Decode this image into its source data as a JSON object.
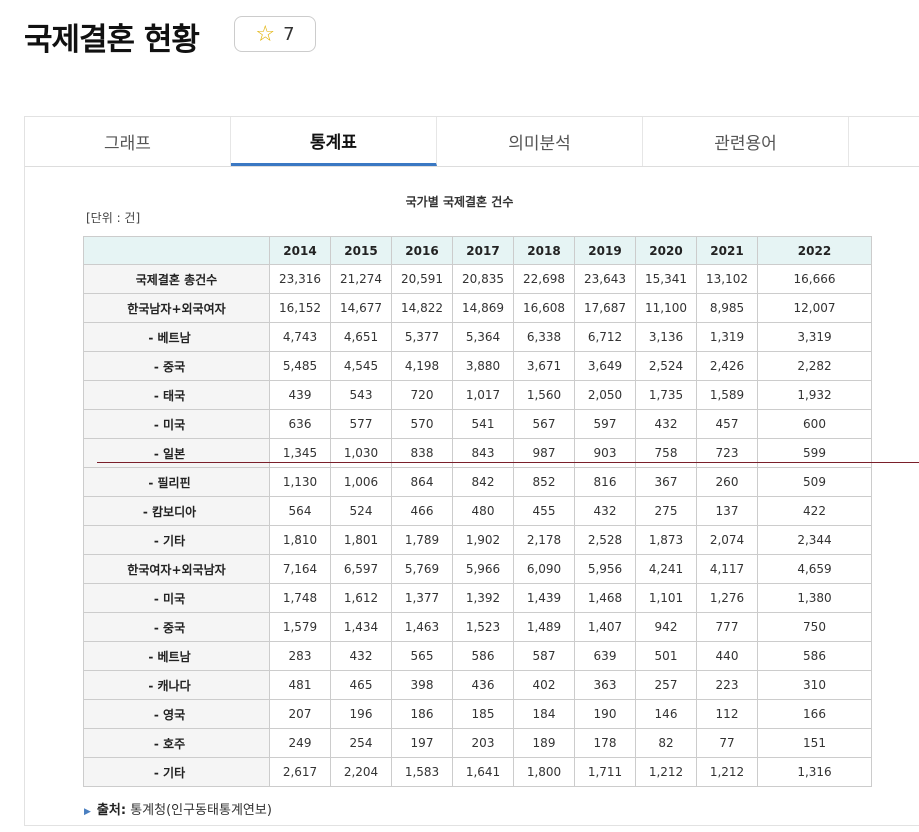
{
  "page": {
    "title": "국제결혼 현황",
    "star_count": "7",
    "star_icon": "star-outline-icon"
  },
  "tabs": [
    {
      "label": "그래프"
    },
    {
      "label": "통계표",
      "active": true
    },
    {
      "label": "의미분석"
    },
    {
      "label": "관련용어"
    }
  ],
  "table": {
    "title": "국가별 국제결혼 건수",
    "unit": "[단위 : 건]",
    "headers": [
      "",
      "2014",
      "2015",
      "2016",
      "2017",
      "2018",
      "2019",
      "2020",
      "2021",
      "2022"
    ],
    "rows": [
      {
        "label": "국제결혼 총건수",
        "values": [
          "23,316",
          "21,274",
          "20,591",
          "20,835",
          "22,698",
          "23,643",
          "15,341",
          "13,102",
          "16,666"
        ]
      },
      {
        "label": "한국남자+외국여자",
        "values": [
          "16,152",
          "14,677",
          "14,822",
          "14,869",
          "16,608",
          "17,687",
          "11,100",
          "8,985",
          "12,007"
        ]
      },
      {
        "label": "- 베트남",
        "values": [
          "4,743",
          "4,651",
          "5,377",
          "5,364",
          "6,338",
          "6,712",
          "3,136",
          "1,319",
          "3,319"
        ]
      },
      {
        "label": "- 중국",
        "values": [
          "5,485",
          "4,545",
          "4,198",
          "3,880",
          "3,671",
          "3,649",
          "2,524",
          "2,426",
          "2,282"
        ]
      },
      {
        "label": "- 태국",
        "values": [
          "439",
          "543",
          "720",
          "1,017",
          "1,560",
          "2,050",
          "1,735",
          "1,589",
          "1,932"
        ]
      },
      {
        "label": "- 미국",
        "values": [
          "636",
          "577",
          "570",
          "541",
          "567",
          "597",
          "432",
          "457",
          "600"
        ]
      },
      {
        "label": "- 일본",
        "values": [
          "1,345",
          "1,030",
          "838",
          "843",
          "987",
          "903",
          "758",
          "723",
          "599"
        ]
      },
      {
        "label": "- 필리핀",
        "values": [
          "1,130",
          "1,006",
          "864",
          "842",
          "852",
          "816",
          "367",
          "260",
          "509"
        ]
      },
      {
        "label": "- 캄보디아",
        "values": [
          "564",
          "524",
          "466",
          "480",
          "455",
          "432",
          "275",
          "137",
          "422"
        ]
      },
      {
        "label": "- 기타",
        "values": [
          "1,810",
          "1,801",
          "1,789",
          "1,902",
          "2,178",
          "2,528",
          "1,873",
          "2,074",
          "2,344"
        ]
      },
      {
        "label": "한국여자+외국남자",
        "values": [
          "7,164",
          "6,597",
          "5,769",
          "5,966",
          "6,090",
          "5,956",
          "4,241",
          "4,117",
          "4,659"
        ]
      },
      {
        "label": "- 미국",
        "values": [
          "1,748",
          "1,612",
          "1,377",
          "1,392",
          "1,439",
          "1,468",
          "1,101",
          "1,276",
          "1,380"
        ]
      },
      {
        "label": "- 중국",
        "values": [
          "1,579",
          "1,434",
          "1,463",
          "1,523",
          "1,489",
          "1,407",
          "942",
          "777",
          "750"
        ]
      },
      {
        "label": "- 베트남",
        "values": [
          "283",
          "432",
          "565",
          "586",
          "587",
          "639",
          "501",
          "440",
          "586"
        ]
      },
      {
        "label": "- 캐나다",
        "values": [
          "481",
          "465",
          "398",
          "436",
          "402",
          "363",
          "257",
          "223",
          "310"
        ]
      },
      {
        "label": "- 영국",
        "values": [
          "207",
          "196",
          "186",
          "185",
          "184",
          "190",
          "146",
          "112",
          "166"
        ]
      },
      {
        "label": "- 호주",
        "values": [
          "249",
          "254",
          "197",
          "203",
          "189",
          "178",
          "82",
          "77",
          "151"
        ]
      },
      {
        "label": "- 기타",
        "values": [
          "2,617",
          "2,204",
          "1,583",
          "1,641",
          "1,800",
          "1,711",
          "1,212",
          "1,212",
          "1,316"
        ]
      }
    ]
  },
  "source": {
    "label": "출처:",
    "value": "통계청(인구동태통계연보)"
  }
}
